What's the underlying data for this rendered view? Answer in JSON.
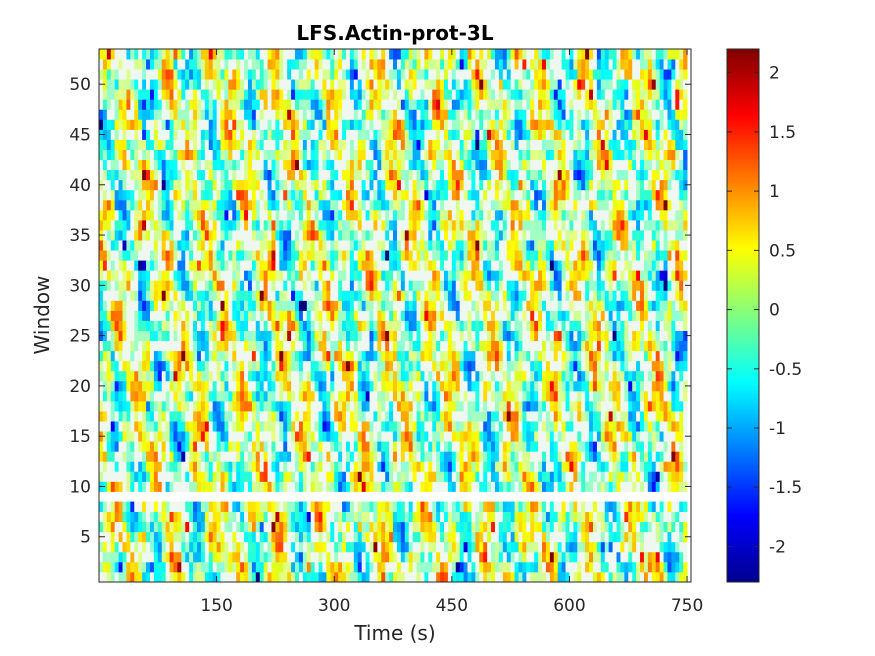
{
  "chart_data": {
    "type": "heatmap",
    "title": "LFS.Actin-prot-3L",
    "xlabel": "Time (s)",
    "ylabel": "Window",
    "xlim": [
      0,
      755
    ],
    "ylim": [
      0.5,
      53.5
    ],
    "xticks": [
      150,
      300,
      450,
      600,
      750
    ],
    "yticks": [
      5,
      10,
      15,
      20,
      25,
      30,
      35,
      40,
      45,
      50
    ],
    "colorbar": {
      "colormap": "jet",
      "range": [
        -2.3,
        2.2
      ],
      "ticks": [
        2,
        1.5,
        1,
        0.5,
        0,
        -0.5,
        -1,
        -1.5,
        -2
      ]
    },
    "n_windows": 53,
    "n_timepoints": 150,
    "time_step_s": 5,
    "missing_windows": [
      9
    ],
    "colors": {
      "missing": "#ffffff",
      "near_zero": "#eef8f0"
    }
  }
}
